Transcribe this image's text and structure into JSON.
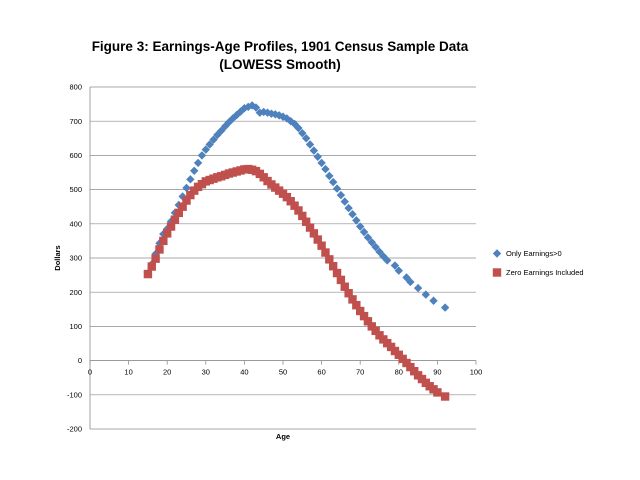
{
  "chart_data": {
    "type": "scatter",
    "title": "Figure 3: Earnings-Age Profiles, 1901 Census Sample Data (LOWESS Smooth)",
    "xlabel": "Age",
    "ylabel": "Dollars",
    "xlim": [
      0,
      100
    ],
    "ylim": [
      -200,
      800
    ],
    "x_ticks": [
      "0",
      "10",
      "20",
      "30",
      "40",
      "50",
      "60",
      "70",
      "80",
      "90",
      "100"
    ],
    "y_ticks": [
      "800",
      "700",
      "600",
      "500",
      "400",
      "300",
      "200",
      "100",
      "0",
      "-100",
      "-200"
    ],
    "grid": "horizontal",
    "legend_position": "right",
    "series": [
      {
        "name": "Only Earnings>0",
        "marker": "diamond",
        "color": "#4F81BD",
        "x": [
          15,
          16,
          17,
          18,
          19,
          20,
          21,
          22,
          23,
          24,
          25,
          26,
          27,
          28,
          29,
          30,
          31,
          32,
          33,
          34,
          35,
          36,
          37,
          38,
          39,
          40,
          41,
          42,
          43,
          44,
          45,
          46,
          47,
          48,
          49,
          50,
          51,
          52,
          53,
          54,
          55,
          56,
          57,
          58,
          59,
          60,
          61,
          62,
          63,
          64,
          65,
          66,
          67,
          68,
          69,
          70,
          71,
          72,
          73,
          74,
          75,
          76,
          77,
          79,
          80,
          82,
          83,
          85,
          87,
          89,
          92
        ],
        "values": [
          255,
          282,
          312,
          343,
          370,
          385,
          407,
          432,
          455,
          480,
          505,
          530,
          555,
          578,
          600,
          617,
          632,
          646,
          660,
          672,
          685,
          697,
          708,
          718,
          728,
          738,
          742,
          746,
          740,
          725,
          727,
          725,
          722,
          720,
          717,
          713,
          708,
          700,
          692,
          680,
          665,
          650,
          632,
          614,
          596,
          578,
          560,
          540,
          522,
          503,
          484,
          465,
          446,
          428,
          410,
          392,
          376,
          360,
          346,
          332,
          318,
          305,
          293,
          278,
          263,
          243,
          230,
          212,
          193,
          175,
          155
        ]
      },
      {
        "name": "Zero Earnings Included",
        "marker": "square",
        "color": "#C0504D",
        "x": [
          15,
          16,
          17,
          18,
          19,
          20,
          21,
          22,
          23,
          24,
          25,
          26,
          27,
          28,
          29,
          30,
          31,
          32,
          33,
          34,
          35,
          36,
          37,
          38,
          39,
          40,
          41,
          42,
          43,
          44,
          45,
          46,
          47,
          48,
          49,
          50,
          51,
          52,
          53,
          54,
          55,
          56,
          57,
          58,
          59,
          60,
          61,
          62,
          63,
          64,
          65,
          66,
          67,
          68,
          69,
          70,
          71,
          72,
          73,
          74,
          75,
          76,
          77,
          78,
          79,
          80,
          81,
          82,
          83,
          84,
          85,
          86,
          87,
          88,
          89,
          90,
          92
        ],
        "values": [
          253,
          275,
          298,
          325,
          350,
          372,
          392,
          412,
          432,
          450,
          468,
          484,
          497,
          508,
          516,
          524,
          528,
          532,
          536,
          539,
          543,
          547,
          550,
          553,
          556,
          559,
          560,
          558,
          554,
          546,
          536,
          525,
          515,
          506,
          497,
          488,
          478,
          466,
          453,
          439,
          423,
          406,
          389,
          372,
          354,
          336,
          316,
          296,
          276,
          256,
          236,
          216,
          197,
          179,
          162,
          145,
          130,
          115,
          100,
          87,
          74,
          62,
          51,
          40,
          28,
          17,
          5,
          -7,
          -19,
          -31,
          -43,
          -54,
          -65,
          -75,
          -84,
          -93,
          -105
        ]
      }
    ]
  }
}
